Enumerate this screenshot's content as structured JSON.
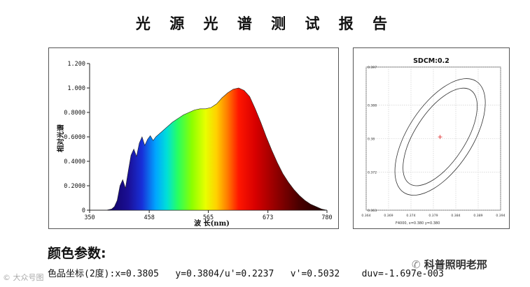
{
  "title": "光 源 光 谱 测 试 报 告",
  "spectrum": {
    "ylabel": "相对光谱",
    "xlabel": "波 长(nm)",
    "y_ticks": [
      "1.200",
      "1.000",
      "0.8000",
      "0.6000",
      "0.4000",
      "0.2000",
      "0"
    ],
    "x_ticks": [
      "350",
      "458",
      "565",
      "673",
      "780"
    ]
  },
  "sdcm": {
    "title": "SDCM:0.2",
    "y_ticks": [
      "0.397",
      "0.388",
      "0.38",
      "0.372",
      "0.363"
    ],
    "x_ticks": [
      "0.364",
      "0.369",
      "0.374",
      "0.379",
      "0.384",
      "0.389",
      "0.394"
    ],
    "footer": "F4000, x=0.380 y=0.380"
  },
  "params": {
    "heading": "颜色参数:",
    "label": "色品坐标(2度):",
    "x": "x=0.3805",
    "y": "y=0.3804/u'=0.2237",
    "v": "v'=0.5032",
    "duv": "duv=-1.697e-003"
  },
  "watermarks": {
    "wechat": "科普照明老邢",
    "corner": "© 大众号图"
  },
  "chart_data": [
    {
      "type": "area",
      "title": "",
      "xlabel": "波 长(nm)",
      "ylabel": "相对光谱",
      "xlim": [
        350,
        780
      ],
      "ylim": [
        0,
        1.2
      ],
      "grid": false,
      "x": [
        380,
        390,
        395,
        400,
        405,
        410,
        415,
        420,
        425,
        430,
        435,
        440,
        445,
        450,
        455,
        460,
        465,
        470,
        475,
        480,
        490,
        500,
        510,
        520,
        530,
        540,
        550,
        560,
        570,
        580,
        590,
        600,
        610,
        620,
        630,
        640,
        650,
        660,
        670,
        680,
        690,
        700,
        710,
        720,
        730,
        740,
        750,
        760,
        770,
        780
      ],
      "y": [
        0.0,
        0.01,
        0.03,
        0.08,
        0.2,
        0.25,
        0.18,
        0.32,
        0.45,
        0.5,
        0.44,
        0.55,
        0.6,
        0.53,
        0.58,
        0.61,
        0.57,
        0.6,
        0.62,
        0.64,
        0.68,
        0.72,
        0.75,
        0.78,
        0.8,
        0.82,
        0.83,
        0.83,
        0.84,
        0.87,
        0.92,
        0.96,
        0.99,
        1.0,
        0.98,
        0.93,
        0.83,
        0.72,
        0.6,
        0.49,
        0.39,
        0.3,
        0.23,
        0.17,
        0.12,
        0.08,
        0.05,
        0.03,
        0.01,
        0.0
      ]
    },
    {
      "type": "line",
      "title": "SDCM:0.2",
      "xlim": [
        0.364,
        0.394
      ],
      "ylim": [
        0.363,
        0.397
      ],
      "grid": true,
      "series": [
        {
          "center": [
            0.3805,
            0.3804
          ],
          "kind": "ellipse"
        }
      ]
    }
  ]
}
